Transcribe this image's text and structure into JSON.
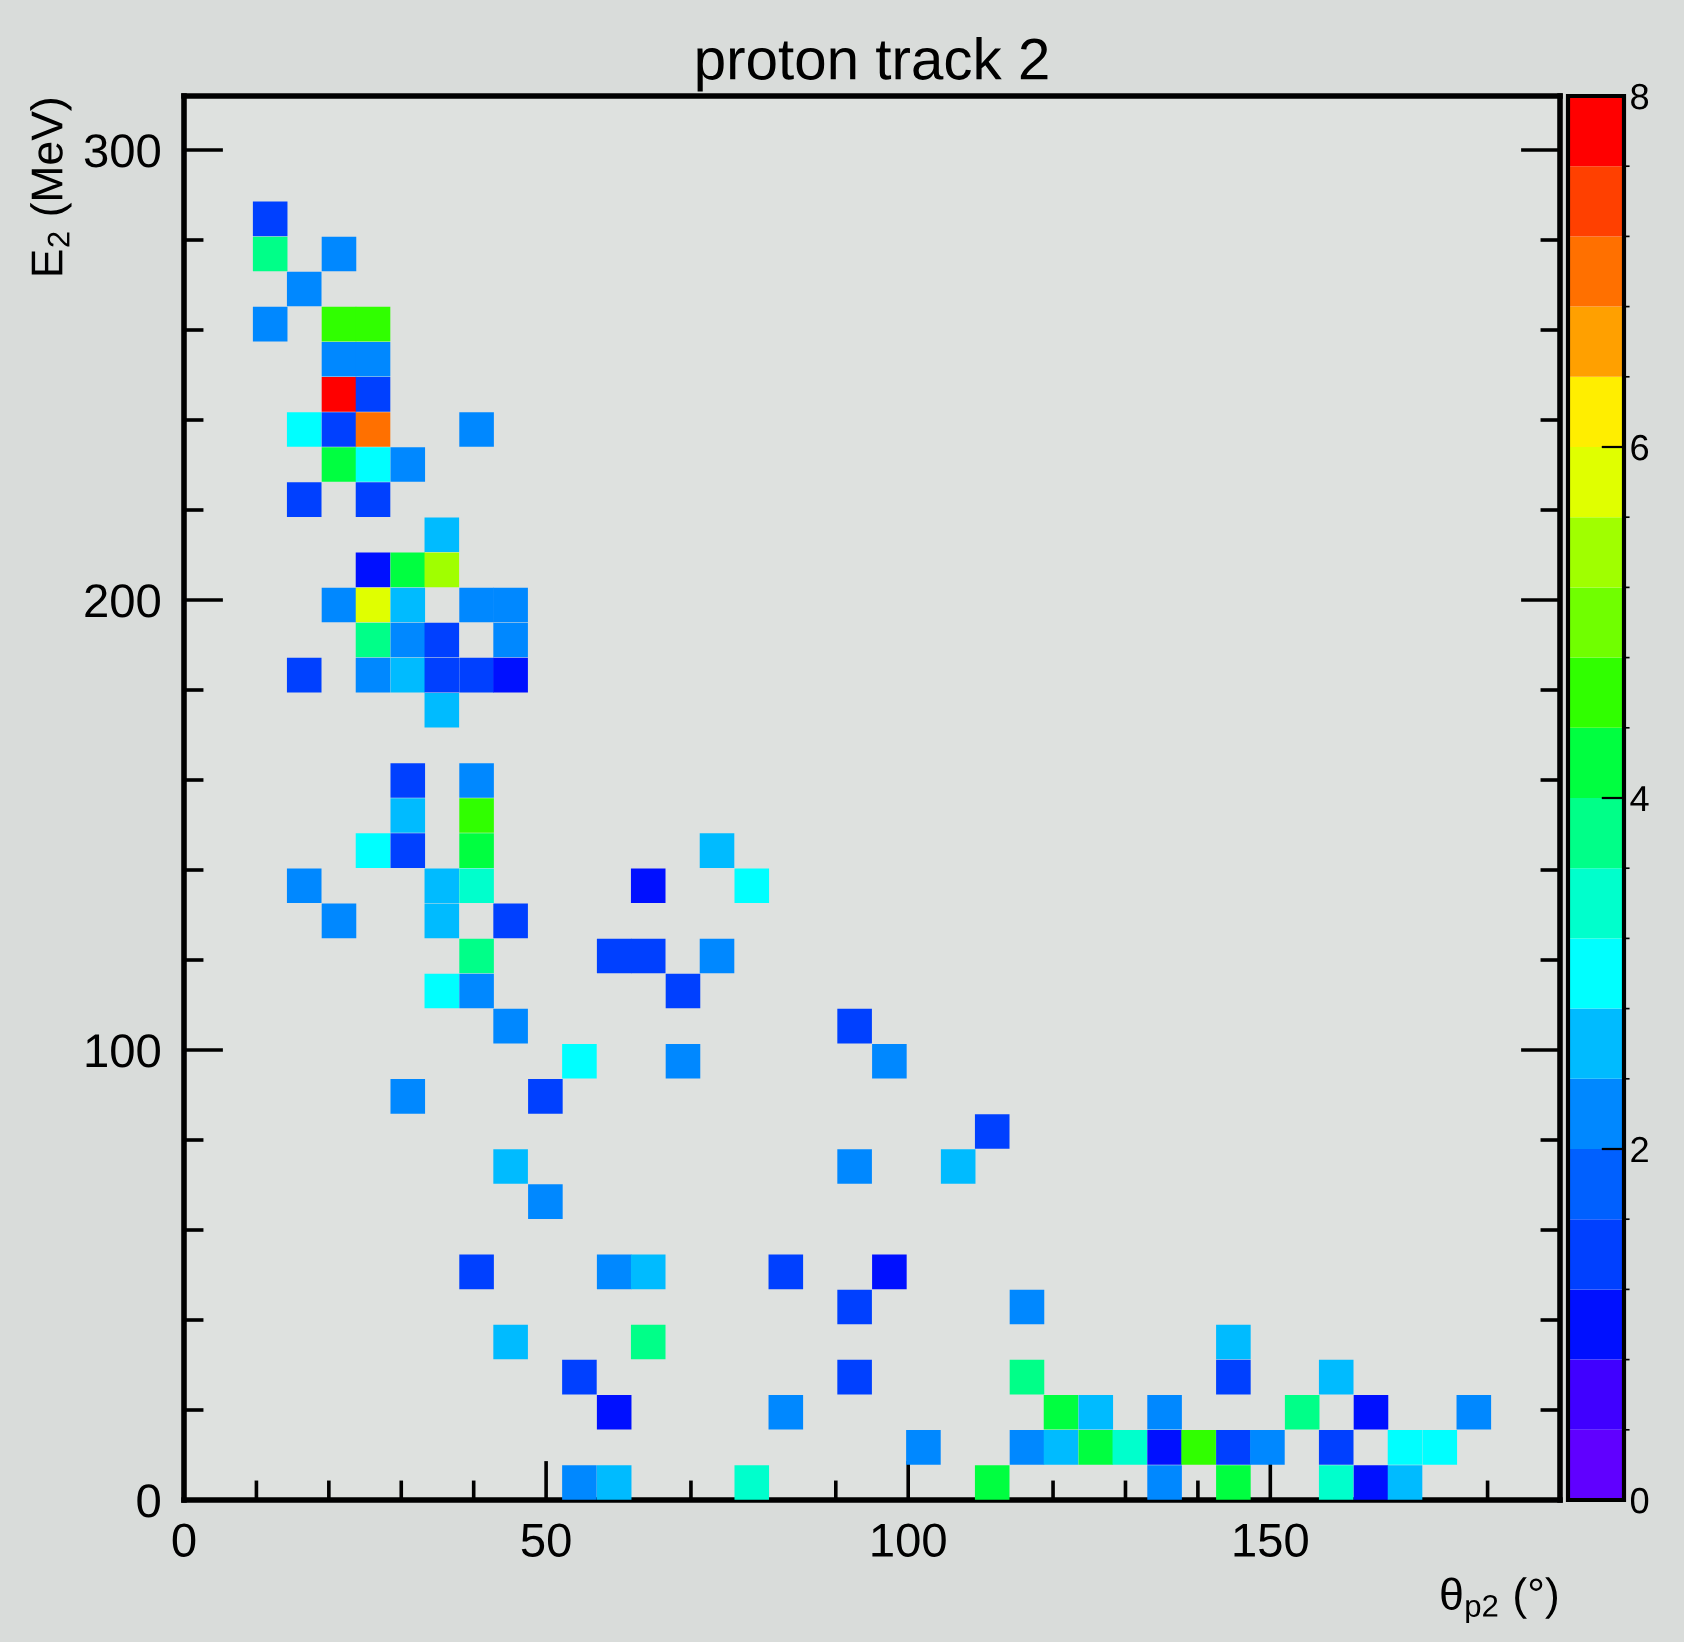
{
  "chart_data": {
    "type": "scatter",
    "title": "proton track 2",
    "xlabel": "θ$_{p2}$ (°)",
    "ylabel": "E$_{2}$ (MeV)",
    "marker": "square",
    "xlim": [
      0,
      190
    ],
    "ylim": [
      0,
      312
    ],
    "xticks": [
      0,
      {
        "value": 10,
        "label": null
      },
      {
        "value": 20,
        "label": null
      },
      {
        "value": 30,
        "label": null
      },
      {
        "value": 40,
        "label": null
      },
      50,
      {
        "value": 60,
        "label": null
      },
      {
        "value": 70,
        "label": null
      },
      {
        "value": 80,
        "label": null
      },
      {
        "value": 90,
        "label": null
      },
      100,
      {
        "value": 110,
        "label": null
      },
      {
        "value": 120,
        "label": null
      },
      {
        "value": 130,
        "label": null
      },
      {
        "value": 140,
        "label": null
      },
      150,
      {
        "value": 160,
        "label": null
      },
      {
        "value": 170,
        "label": null
      },
      {
        "value": 180,
        "label": null
      }
    ],
    "yticks": [
      0,
      {
        "value": 20,
        "label": null
      },
      {
        "value": 40,
        "label": null
      },
      {
        "value": 60,
        "label": null
      },
      {
        "value": 80,
        "label": null
      },
      100,
      {
        "value": 120,
        "label": null
      },
      {
        "value": 140,
        "label": null
      },
      {
        "value": 160,
        "label": null
      },
      {
        "value": 180,
        "label": null
      },
      200,
      {
        "value": 220,
        "label": null
      },
      {
        "value": 240,
        "label": null
      },
      {
        "value": 260,
        "label": null
      },
      {
        "value": 280,
        "label": null
      },
      300
    ],
    "clim": [
      0,
      8
    ],
    "cticks": [
      0,
      2,
      4,
      6,
      8
    ],
    "x": [
      11.9,
      11.9,
      21.4,
      16.6,
      11.9,
      21.4,
      26.1,
      21.4,
      26.1,
      21.4,
      26.1,
      16.6,
      21.4,
      26.1,
      40.4,
      21.4,
      26.1,
      30.9,
      16.6,
      26.1,
      35.6,
      26.1,
      30.9,
      35.6,
      21.4,
      26.1,
      30.9,
      40.4,
      45.1,
      26.1,
      30.9,
      35.6,
      45.1,
      16.6,
      26.1,
      30.9,
      35.6,
      40.4,
      45.1,
      35.6,
      30.9,
      40.4,
      30.9,
      40.4,
      26.1,
      30.9,
      40.4,
      73.6,
      16.6,
      35.6,
      40.4,
      64.1,
      78.4,
      21.4,
      35.6,
      45.1,
      40.4,
      59.4,
      64.1,
      73.6,
      35.6,
      40.4,
      68.9,
      45.1,
      92.6,
      54.6,
      68.9,
      97.4,
      30.9,
      49.9,
      111.6,
      45.1,
      92.6,
      106.9,
      49.9,
      40.4,
      59.4,
      64.1,
      83.1,
      97.4,
      92.6,
      116.4,
      45.1,
      64.1,
      144.9,
      54.6,
      92.6,
      116.4,
      144.9,
      159.1,
      59.4,
      83.1,
      121.1,
      125.9,
      135.4,
      154.4,
      163.9,
      178.1,
      102.1,
      116.4,
      121.1,
      125.9,
      130.6,
      135.4,
      140.1,
      144.9,
      149.6,
      159.1,
      168.6,
      173.4,
      54.6,
      59.4,
      78.4,
      111.6,
      135.4,
      144.9,
      159.1,
      163.9,
      168.6
    ],
    "values": [
      284.7,
      276.9,
      276.9,
      269.1,
      261.3,
      261.3,
      261.3,
      253.5,
      253.5,
      245.7,
      245.7,
      237.9,
      237.9,
      237.9,
      237.9,
      230.1,
      230.1,
      230.1,
      222.3,
      222.3,
      214.5,
      206.7,
      206.7,
      206.7,
      198.9,
      198.9,
      198.9,
      198.9,
      198.9,
      191.1,
      191.1,
      191.1,
      191.1,
      183.3,
      183.3,
      183.3,
      183.3,
      183.3,
      183.3,
      175.5,
      159.9,
      159.9,
      152.1,
      152.1,
      144.3,
      144.3,
      144.3,
      144.3,
      136.5,
      136.5,
      136.5,
      136.5,
      136.5,
      128.7,
      128.7,
      128.7,
      120.9,
      120.9,
      120.9,
      120.9,
      113.1,
      113.1,
      113.1,
      105.3,
      105.3,
      97.5,
      97.5,
      97.5,
      89.7,
      89.7,
      81.9,
      74.1,
      74.1,
      74.1,
      66.3,
      50.7,
      50.7,
      50.7,
      50.7,
      50.7,
      42.9,
      42.9,
      35.1,
      35.1,
      35.1,
      27.3,
      27.3,
      27.3,
      27.3,
      27.3,
      19.5,
      19.5,
      19.5,
      19.5,
      19.5,
      19.5,
      19.5,
      19.5,
      11.7,
      11.7,
      11.7,
      11.7,
      11.7,
      11.7,
      11.7,
      11.7,
      11.7,
      11.7,
      11.7,
      11.7,
      3.9,
      3.9,
      3.9,
      3.9,
      3.9,
      3.9,
      3.9,
      3.9,
      3.9
    ],
    "cvalues": [
      1.4,
      3.8,
      2.2,
      2.2,
      2.2,
      4.6,
      4.6,
      2.2,
      2.2,
      7.8,
      1.4,
      3.0,
      1.4,
      7.0,
      2.2,
      4.2,
      3.0,
      2.2,
      1.4,
      1.4,
      2.6,
      1.0,
      4.2,
      5.4,
      2.2,
      5.8,
      2.6,
      2.2,
      2.2,
      3.8,
      2.2,
      1.4,
      2.2,
      1.4,
      2.2,
      2.6,
      1.4,
      1.4,
      1.0,
      2.6,
      1.4,
      2.2,
      2.6,
      4.6,
      3.0,
      1.4,
      4.2,
      2.6,
      2.2,
      2.6,
      3.4,
      1.0,
      3.0,
      2.2,
      2.6,
      1.4,
      3.8,
      1.4,
      1.4,
      2.2,
      3.0,
      2.2,
      1.4,
      2.2,
      1.4,
      3.0,
      2.2,
      2.2,
      2.2,
      1.4,
      1.4,
      2.6,
      2.2,
      2.6,
      2.2,
      1.4,
      2.2,
      2.6,
      1.4,
      1.0,
      1.4,
      2.2,
      2.6,
      3.8,
      2.6,
      1.4,
      1.4,
      3.8,
      1.4,
      2.6,
      1.0,
      2.2,
      4.2,
      2.6,
      2.2,
      3.8,
      1.0,
      2.2,
      2.2,
      2.2,
      2.6,
      4.2,
      3.4,
      1.0,
      4.6,
      1.4,
      2.2,
      1.4,
      3.0,
      3.0,
      2.2,
      2.6,
      3.4,
      4.2,
      2.2,
      4.2,
      3.4,
      1.0,
      2.6
    ]
  }
}
